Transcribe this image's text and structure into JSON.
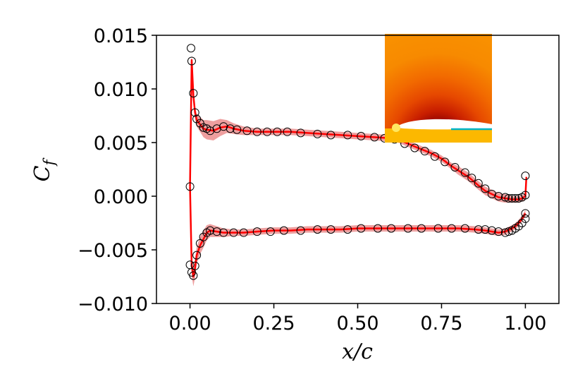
{
  "chart_data": {
    "type": "line",
    "title": "",
    "xlabel": "x/c",
    "ylabel": "C_f",
    "xlim": [
      -0.1,
      1.1
    ],
    "ylim": [
      -0.01,
      0.015
    ],
    "xticks": [
      0.0,
      0.25,
      0.5,
      0.75,
      1.0
    ],
    "xtick_labels": [
      "0.00",
      "0.25",
      "0.50",
      "0.75",
      "1.00"
    ],
    "yticks": [
      -0.01,
      -0.005,
      0.0,
      0.005,
      0.01,
      0.015
    ],
    "ytick_labels": [
      "−0.010",
      "−0.005",
      "0.000",
      "0.005",
      "0.010",
      "0.015"
    ],
    "grid": false,
    "legend": false,
    "inset": "pressure contour field around airfoil (top-right)",
    "colors": {
      "prediction": "#ff0000",
      "uncertainty_band": "#e05050",
      "observed": "#000000"
    },
    "series": [
      {
        "surface": "upper",
        "style": "line",
        "x": [
          0.0,
          0.005,
          0.01,
          0.015,
          0.02,
          0.03,
          0.04,
          0.05,
          0.07,
          0.09,
          0.11,
          0.13,
          0.16,
          0.2,
          0.25,
          0.3,
          0.35,
          0.4,
          0.45,
          0.5,
          0.55,
          0.6,
          0.62,
          0.65,
          0.68,
          0.72,
          0.75,
          0.78,
          0.8,
          0.83,
          0.86,
          0.88,
          0.9,
          0.92,
          0.94,
          0.96,
          0.98,
          0.99,
          1.0,
          1.003
        ],
        "y": [
          0.0009,
          0.0127,
          0.0094,
          0.0078,
          0.0071,
          0.0067,
          0.0063,
          0.0062,
          0.0061,
          0.0064,
          0.0065,
          0.0063,
          0.0061,
          0.006,
          0.006,
          0.006,
          0.0059,
          0.0058,
          0.0057,
          0.0056,
          0.0055,
          0.0054,
          0.0053,
          0.0049,
          0.0045,
          0.004,
          0.0035,
          0.0028,
          0.0024,
          0.0018,
          0.001,
          0.0005,
          0.0002,
          -0.0001,
          -0.0002,
          -0.0003,
          -0.0003,
          -0.0002,
          0.0,
          0.0018
        ],
        "band": [
          0.0003,
          0.0006,
          0.0006,
          0.0006,
          0.0006,
          0.0007,
          0.0008,
          0.0009,
          0.0009,
          0.0008,
          0.0006,
          0.0005,
          0.0004,
          0.0003,
          0.0003,
          0.0003,
          0.0003,
          0.0003,
          0.0003,
          0.0003,
          0.0003,
          0.0003,
          0.0003,
          0.0003,
          0.0003,
          0.0003,
          0.0003,
          0.0003,
          0.0004,
          0.0004,
          0.0004,
          0.0004,
          0.0004,
          0.0004,
          0.0004,
          0.0003,
          0.0003,
          0.0003,
          0.0003,
          0.0003
        ]
      },
      {
        "surface": "lower",
        "style": "line",
        "x": [
          0.0,
          0.005,
          0.01,
          0.015,
          0.02,
          0.03,
          0.04,
          0.05,
          0.06,
          0.08,
          0.1,
          0.13,
          0.16,
          0.2,
          0.25,
          0.3,
          0.35,
          0.4,
          0.45,
          0.5,
          0.55,
          0.6,
          0.65,
          0.7,
          0.75,
          0.8,
          0.85,
          0.88,
          0.9,
          0.92,
          0.94,
          0.96,
          0.97,
          0.98,
          0.99,
          1.0
        ],
        "y": [
          0.0009,
          -0.0065,
          -0.0075,
          -0.0067,
          -0.0055,
          -0.0046,
          -0.004,
          -0.0034,
          -0.0032,
          -0.0033,
          -0.0034,
          -0.0034,
          -0.0034,
          -0.0033,
          -0.0032,
          -0.0032,
          -0.0031,
          -0.0031,
          -0.0031,
          -0.003,
          -0.003,
          -0.003,
          -0.003,
          -0.003,
          -0.003,
          -0.003,
          -0.0031,
          -0.0032,
          -0.0033,
          -0.0034,
          -0.0033,
          -0.003,
          -0.0028,
          -0.0025,
          -0.0021,
          -0.0016
        ],
        "band": [
          0.0003,
          0.0009,
          0.0009,
          0.0009,
          0.0008,
          0.0008,
          0.0008,
          0.0007,
          0.0006,
          0.0005,
          0.0004,
          0.0003,
          0.0003,
          0.0003,
          0.0003,
          0.0003,
          0.0003,
          0.0003,
          0.0003,
          0.0003,
          0.0003,
          0.0003,
          0.0003,
          0.0003,
          0.0003,
          0.0003,
          0.0003,
          0.0003,
          0.0003,
          0.0003,
          0.0003,
          0.0003,
          0.0003,
          0.0003,
          0.0003,
          0.0003
        ]
      },
      {
        "surface": "upper",
        "style": "markers",
        "x": [
          0.0,
          0.003,
          0.005,
          0.01,
          0.015,
          0.02,
          0.03,
          0.04,
          0.05,
          0.06,
          0.08,
          0.1,
          0.12,
          0.14,
          0.17,
          0.2,
          0.23,
          0.26,
          0.29,
          0.33,
          0.38,
          0.42,
          0.47,
          0.51,
          0.55,
          0.58,
          0.61,
          0.64,
          0.67,
          0.7,
          0.73,
          0.76,
          0.79,
          0.82,
          0.84,
          0.86,
          0.88,
          0.9,
          0.92,
          0.94,
          0.95,
          0.96,
          0.97,
          0.98,
          0.99,
          1.0,
          1.0
        ],
        "y": [
          0.0009,
          0.0138,
          0.0126,
          0.0096,
          0.0078,
          0.0072,
          0.0068,
          0.0064,
          0.0063,
          0.0061,
          0.0063,
          0.0065,
          0.0063,
          0.0062,
          0.0061,
          0.006,
          0.006,
          0.006,
          0.006,
          0.0059,
          0.0058,
          0.0057,
          0.0057,
          0.0056,
          0.0055,
          0.0054,
          0.0053,
          0.0049,
          0.0045,
          0.0042,
          0.0037,
          0.0032,
          0.0027,
          0.0022,
          0.0017,
          0.0012,
          0.0007,
          0.0002,
          0.0,
          -0.0001,
          -0.0002,
          -0.0002,
          -0.0002,
          -0.0002,
          -0.0001,
          0.0001,
          0.0019
        ]
      },
      {
        "surface": "lower",
        "style": "markers",
        "x": [
          0.0,
          0.005,
          0.01,
          0.015,
          0.02,
          0.03,
          0.04,
          0.05,
          0.06,
          0.08,
          0.1,
          0.13,
          0.16,
          0.2,
          0.24,
          0.28,
          0.33,
          0.38,
          0.42,
          0.47,
          0.51,
          0.56,
          0.6,
          0.65,
          0.69,
          0.74,
          0.78,
          0.82,
          0.86,
          0.88,
          0.9,
          0.92,
          0.94,
          0.95,
          0.96,
          0.97,
          0.98,
          0.99,
          1.0,
          1.0
        ],
        "y": [
          -0.0064,
          -0.0071,
          -0.0074,
          -0.0065,
          -0.0055,
          -0.0044,
          -0.0038,
          -0.0034,
          -0.0032,
          -0.0033,
          -0.0034,
          -0.0034,
          -0.0034,
          -0.0033,
          -0.0033,
          -0.0032,
          -0.0032,
          -0.0031,
          -0.0031,
          -0.0031,
          -0.003,
          -0.003,
          -0.003,
          -0.003,
          -0.003,
          -0.003,
          -0.003,
          -0.003,
          -0.0031,
          -0.0031,
          -0.0032,
          -0.0033,
          -0.0034,
          -0.0033,
          -0.0032,
          -0.003,
          -0.0028,
          -0.0025,
          -0.0021,
          -0.0016
        ]
      }
    ]
  }
}
